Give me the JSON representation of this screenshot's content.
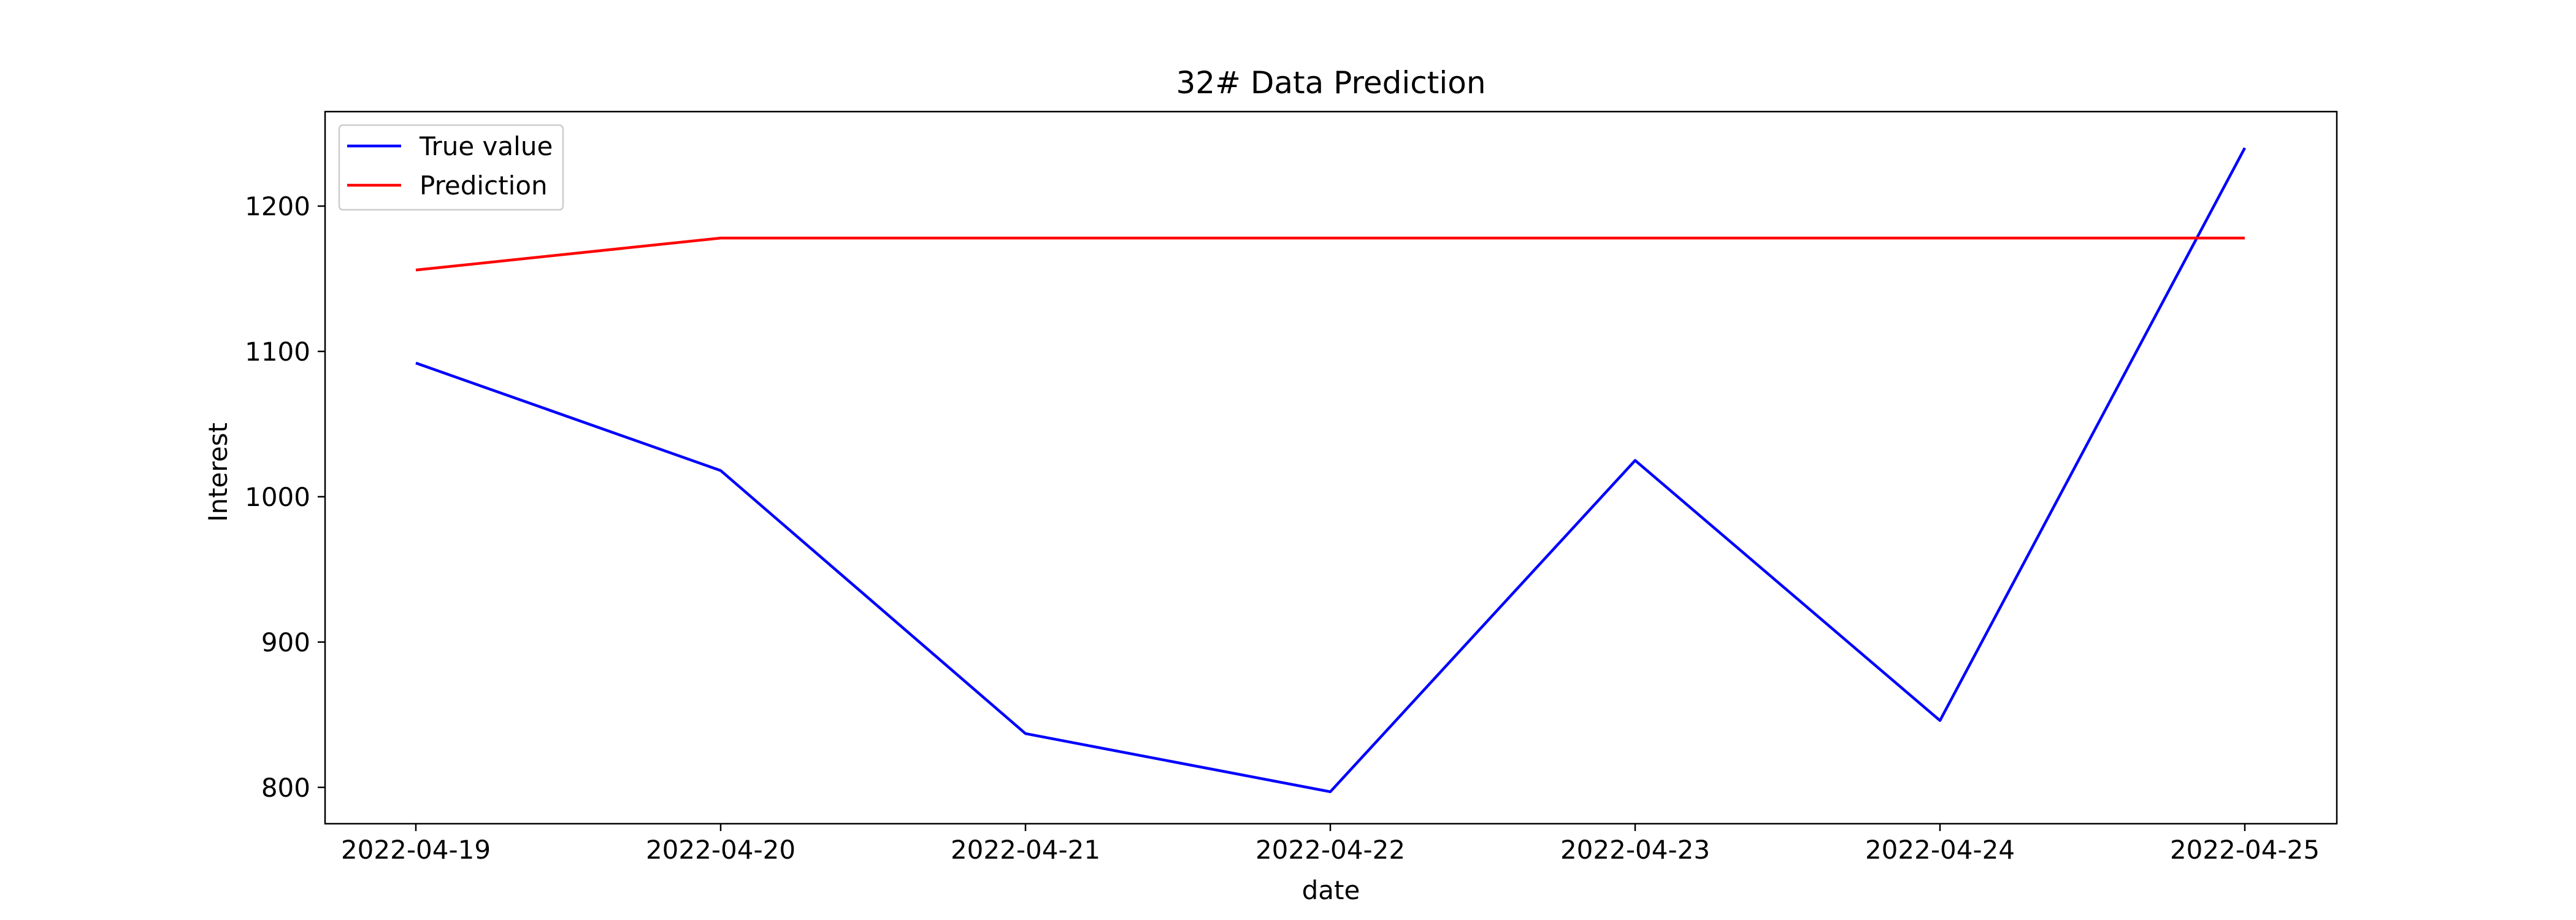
{
  "chart_data": {
    "type": "line",
    "title": "32# Data Prediction",
    "xlabel": "date",
    "ylabel": "Interest",
    "categories": [
      "2022-04-19",
      "2022-04-20",
      "2022-04-21",
      "2022-04-22",
      "2022-04-23",
      "2022-04-24",
      "2022-04-25"
    ],
    "yticks": [
      800,
      900,
      1000,
      1100,
      1200
    ],
    "ylim": [
      775,
      1265
    ],
    "grid": false,
    "legend_position": "top-left",
    "series": [
      {
        "name": "True value",
        "color": "#0000ff",
        "values": [
          1092,
          1018,
          837,
          797,
          1025,
          846,
          1240
        ]
      },
      {
        "name": "Prediction",
        "color": "#ff0000",
        "values": [
          1156,
          1178,
          1178,
          1178,
          1178,
          1178,
          1178
        ]
      }
    ]
  }
}
